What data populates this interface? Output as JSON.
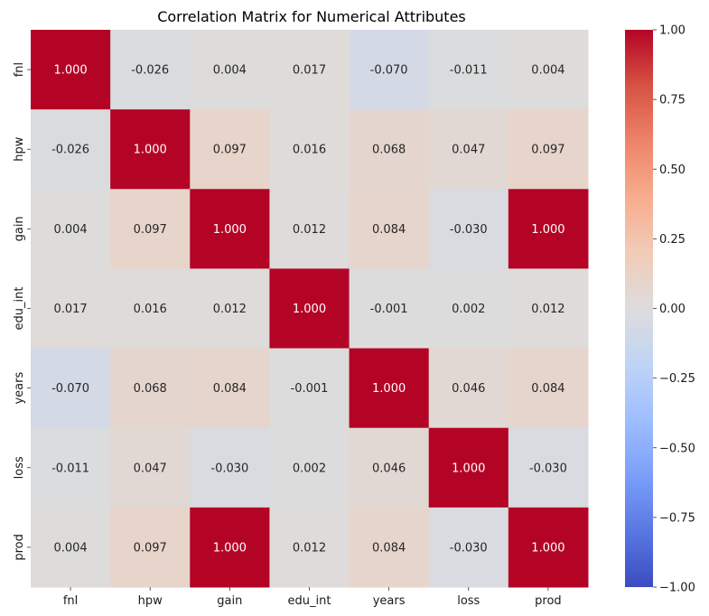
{
  "chart_data": {
    "type": "heatmap",
    "title": "Correlation Matrix for Numerical Attributes",
    "x_labels": [
      "fnl",
      "hpw",
      "gain",
      "edu_int",
      "years",
      "loss",
      "prod"
    ],
    "y_labels": [
      "fnl",
      "hpw",
      "gain",
      "edu_int",
      "years",
      "loss",
      "prod"
    ],
    "values": [
      [
        1.0,
        -0.026,
        0.004,
        0.017,
        -0.07,
        -0.011,
        0.004
      ],
      [
        -0.026,
        1.0,
        0.097,
        0.016,
        0.068,
        0.047,
        0.097
      ],
      [
        0.004,
        0.097,
        1.0,
        0.012,
        0.084,
        -0.03,
        1.0
      ],
      [
        0.017,
        0.016,
        0.012,
        1.0,
        -0.001,
        0.002,
        0.012
      ],
      [
        -0.07,
        0.068,
        0.084,
        -0.001,
        1.0,
        0.046,
        0.084
      ],
      [
        -0.011,
        0.047,
        -0.03,
        0.002,
        0.046,
        1.0,
        -0.03
      ],
      [
        0.004,
        0.097,
        1.0,
        0.012,
        0.084,
        -0.03,
        1.0
      ]
    ],
    "cell_labels": [
      [
        "1.000",
        "-0.026",
        "0.004",
        "0.017",
        "-0.070",
        "-0.011",
        "0.004"
      ],
      [
        "-0.026",
        "1.000",
        "0.097",
        "0.016",
        "0.068",
        "0.047",
        "0.097"
      ],
      [
        "0.004",
        "0.097",
        "1.000",
        "0.012",
        "0.084",
        "-0.030",
        "1.000"
      ],
      [
        "0.017",
        "0.016",
        "0.012",
        "1.000",
        "-0.001",
        "0.002",
        "0.012"
      ],
      [
        "-0.070",
        "0.068",
        "0.084",
        "-0.001",
        "1.000",
        "0.046",
        "0.084"
      ],
      [
        "-0.011",
        "0.047",
        "-0.030",
        "0.002",
        "0.046",
        "1.000",
        "-0.030"
      ],
      [
        "0.004",
        "0.097",
        "1.000",
        "0.012",
        "0.084",
        "-0.030",
        "1.000"
      ]
    ],
    "colorbar": {
      "range": [
        -1.0,
        1.0
      ],
      "ticks": [
        1.0,
        0.75,
        0.5,
        0.25,
        0.0,
        -0.25,
        -0.5,
        -0.75,
        -1.0
      ],
      "tick_labels": [
        "1.00",
        "0.75",
        "0.50",
        "0.25",
        "0.00",
        "−0.25",
        "−0.50",
        "−0.75",
        "−1.00"
      ],
      "colormap": "coolwarm",
      "colormap_stops": [
        "#3b4cc0",
        "#5977e3",
        "#7b9ff9",
        "#9ebeff",
        "#c0d4f5",
        "#dddcdc",
        "#f2cbb7",
        "#f7ac8e",
        "#ee8468",
        "#d65244",
        "#b40426"
      ]
    }
  }
}
